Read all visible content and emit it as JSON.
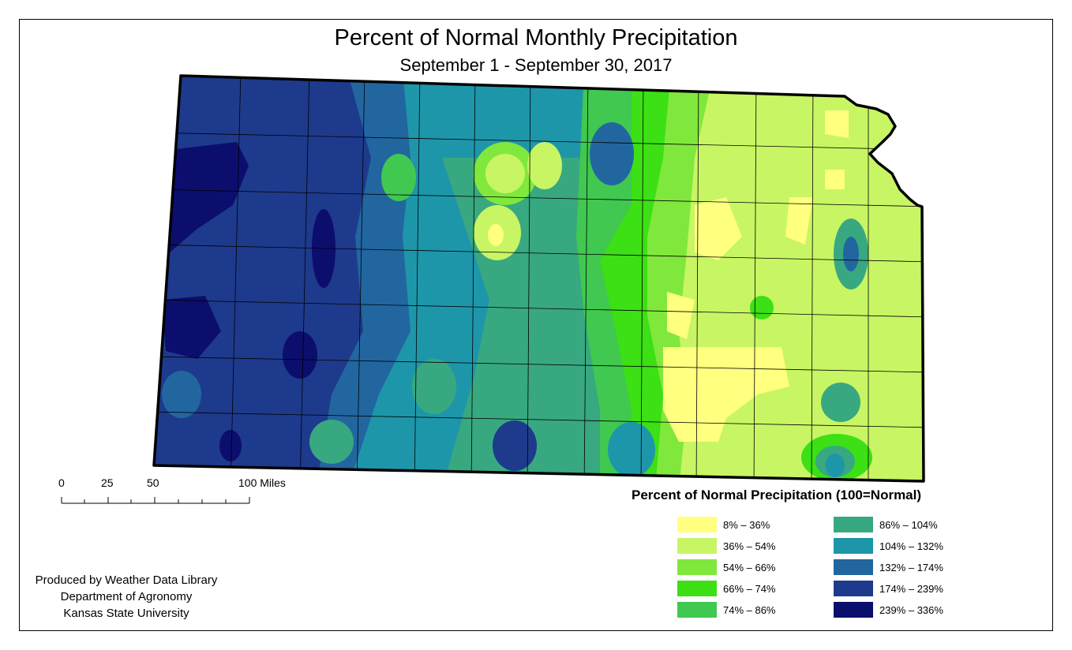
{
  "header": {
    "title": "Percent of Normal Monthly Precipitation",
    "subtitle": "September 1 - September 30, 2017"
  },
  "scale_bar": {
    "labels": [
      "0",
      "25",
      "50",
      "100 Miles"
    ]
  },
  "credits": {
    "line1": "Produced by Weather Data Library",
    "line2": "Department of Agronomy",
    "line3": "Kansas State University"
  },
  "legend": {
    "title": "Percent of Normal Precipitation (100=Normal)",
    "items": [
      {
        "label": "8% – 36%",
        "color": "#ffff80"
      },
      {
        "label": "36% – 54%",
        "color": "#c8f564"
      },
      {
        "label": "54% – 66%",
        "color": "#80e83c"
      },
      {
        "label": "66% – 74%",
        "color": "#3ce014"
      },
      {
        "label": "74% – 86%",
        "color": "#40c850"
      },
      {
        "label": "86% – 104%",
        "color": "#38a880"
      },
      {
        "label": "104% – 132%",
        "color": "#1e96aa"
      },
      {
        "label": "132% – 174%",
        "color": "#2266a0"
      },
      {
        "label": "174% – 239%",
        "color": "#1e3a8c"
      },
      {
        "label": "239% – 336%",
        "color": "#0c0e6e"
      }
    ]
  }
}
